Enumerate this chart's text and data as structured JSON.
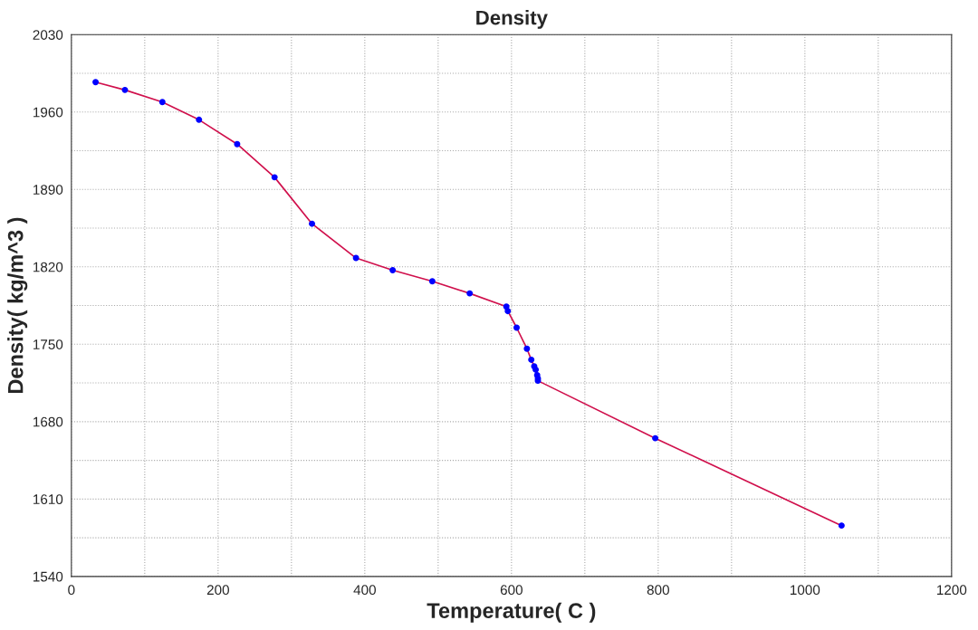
{
  "chart_data": {
    "type": "line",
    "title": "Density",
    "xlabel": "Temperature( C )",
    "ylabel": "Density( kg/m^3 )",
    "x": [
      33,
      73,
      124,
      174,
      226,
      277,
      328,
      388,
      438,
      492,
      543,
      593,
      595,
      607,
      621,
      627,
      631,
      633,
      635,
      636,
      636,
      796,
      1050
    ],
    "series": [
      {
        "color": "#d0104c",
        "values": [
          1987,
          1980,
          1969,
          1953,
          1931,
          1901,
          1859,
          1828,
          1817,
          1807,
          1796,
          1784,
          1780,
          1765,
          1746,
          1736,
          1730,
          1727,
          1722,
          1719,
          1717,
          1665,
          1586
        ]
      }
    ],
    "marker": "circle",
    "line_style": "solid",
    "grid": true,
    "xlim": [
      0,
      1200
    ],
    "ylim": [
      1540,
      2030
    ],
    "xticks": [
      0,
      {
        "value": 100,
        "label": null
      },
      200,
      {
        "value": 300,
        "label": null
      },
      400,
      {
        "value": 500,
        "label": null
      },
      600,
      {
        "value": 700,
        "label": null
      },
      800,
      {
        "value": 900,
        "label": null
      },
      1000,
      {
        "value": 1100,
        "label": null
      },
      1200
    ],
    "yticks": [
      1540,
      {
        "value": 1575,
        "label": null
      },
      1610,
      {
        "value": 1645,
        "label": null
      },
      1680,
      {
        "value": 1715,
        "label": null
      },
      1750,
      {
        "value": 1785,
        "label": null
      },
      1820,
      {
        "value": 1855,
        "label": null
      },
      1890,
      {
        "value": 1925,
        "label": null
      },
      1960,
      {
        "value": 1995,
        "label": null
      },
      2030
    ]
  }
}
